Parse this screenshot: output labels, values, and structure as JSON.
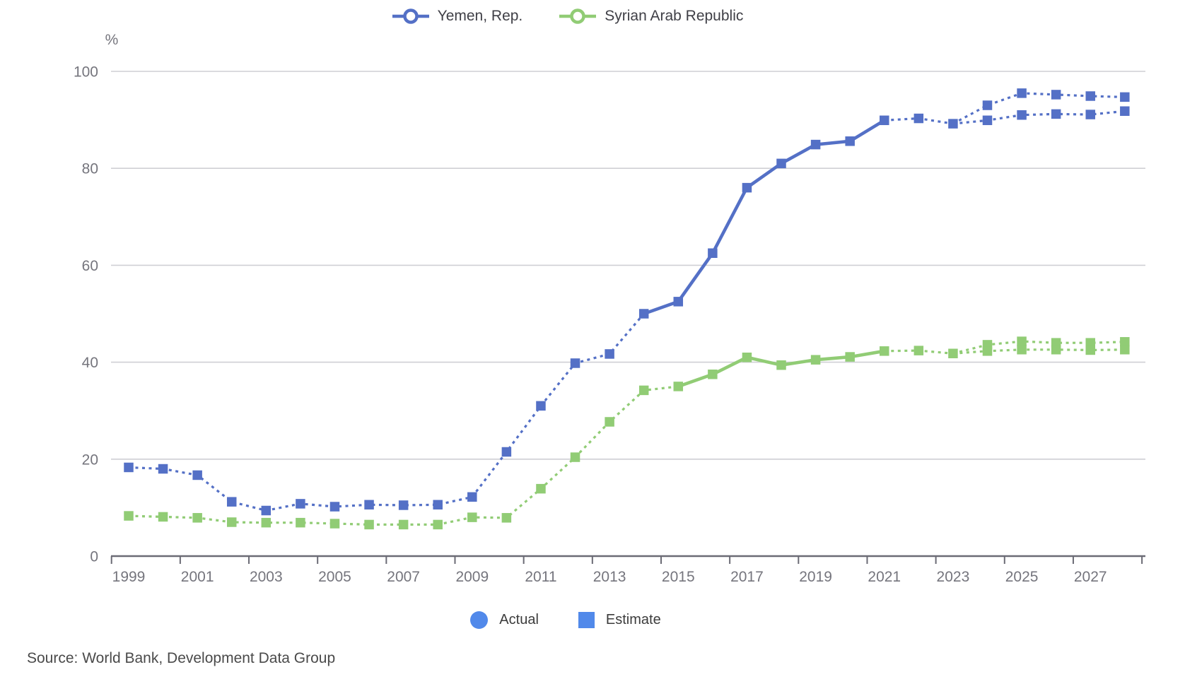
{
  "top_legend": {
    "items": [
      {
        "label": "Yemen, Rep.",
        "color": "#5470C6"
      },
      {
        "label": "Syrian Arab Republic",
        "color": "#91CC75"
      }
    ]
  },
  "bottom_legend": {
    "actual_label": "Actual",
    "estimate_label": "Estimate",
    "marker_color": "#5189EA"
  },
  "source": "Source: World Bank, Development Data Group",
  "chart_data": {
    "type": "line",
    "title": "",
    "unit_label": "%",
    "ylabel": "%",
    "ylim": [
      0,
      100
    ],
    "yticks": [
      0,
      20,
      40,
      60,
      80,
      100
    ],
    "xtick_labels": [
      "1999",
      "2001",
      "2003",
      "2005",
      "2007",
      "2009",
      "2011",
      "2013",
      "2015",
      "2017",
      "2019",
      "2021",
      "2023",
      "2025",
      "2027"
    ],
    "x_range": [
      1999,
      2028
    ],
    "grid": true,
    "legend_position": "top",
    "marker_semantics": {
      "actual": "circle",
      "estimate": "square"
    },
    "axis_color": "#6b6b75",
    "grid_color": "#cfcfd4",
    "tick_label_color": "#75757d",
    "series": [
      {
        "id": "syria",
        "name": "Syrian Arab Republic",
        "color": "#91CC75",
        "marker": "square",
        "years": [
          1999,
          2000,
          2001,
          2002,
          2003,
          2004,
          2005,
          2006,
          2007,
          2008,
          2009,
          2010,
          2011,
          2012,
          2013,
          2014,
          2015,
          2016,
          2017,
          2018,
          2019,
          2020,
          2021,
          2022,
          2023
        ],
        "values": [
          8.3,
          8.1,
          7.9,
          7.0,
          6.9,
          6.9,
          6.7,
          6.5,
          6.5,
          6.5,
          8.0,
          7.9,
          13.9,
          20.4,
          27.7,
          34.2,
          35.0,
          37.5,
          41.0,
          39.4,
          40.5,
          41.1,
          42.3,
          42.4,
          41.8
        ],
        "solid_years": [
          2015,
          2021
        ],
        "projection_upper": {
          "years": [
            2023,
            2024,
            2025,
            2026,
            2027,
            2028
          ],
          "values": [
            41.8,
            43.6,
            44.3,
            44.0,
            44.0,
            44.2
          ]
        },
        "projection_lower": {
          "years": [
            2023,
            2024,
            2025,
            2026,
            2027,
            2028
          ],
          "values": [
            41.8,
            42.3,
            42.6,
            42.6,
            42.5,
            42.6
          ]
        }
      },
      {
        "id": "yemen",
        "name": "Yemen, Rep.",
        "color": "#5470C6",
        "marker": "square",
        "years": [
          1999,
          2000,
          2001,
          2002,
          2003,
          2004,
          2005,
          2006,
          2007,
          2008,
          2009,
          2010,
          2011,
          2012,
          2013,
          2014,
          2015,
          2016,
          2017,
          2018,
          2019,
          2020,
          2021,
          2022,
          2023
        ],
        "values": [
          18.3,
          18.0,
          16.7,
          11.2,
          9.4,
          10.8,
          10.2,
          10.6,
          10.5,
          10.6,
          12.2,
          21.5,
          31.0,
          39.8,
          41.7,
          50.0,
          52.5,
          62.5,
          76.0,
          81.0,
          84.9,
          85.6,
          89.9,
          90.3,
          89.2
        ],
        "solid_years": [
          2014,
          2021
        ],
        "projection_upper": {
          "years": [
            2023,
            2024,
            2025,
            2026,
            2027,
            2028
          ],
          "values": [
            89.2,
            93.0,
            95.5,
            95.2,
            94.9,
            94.7
          ]
        },
        "projection_lower": {
          "years": [
            2023,
            2024,
            2025,
            2026,
            2027,
            2028
          ],
          "values": [
            89.2,
            89.9,
            91.0,
            91.2,
            91.1,
            91.8
          ]
        }
      }
    ]
  }
}
